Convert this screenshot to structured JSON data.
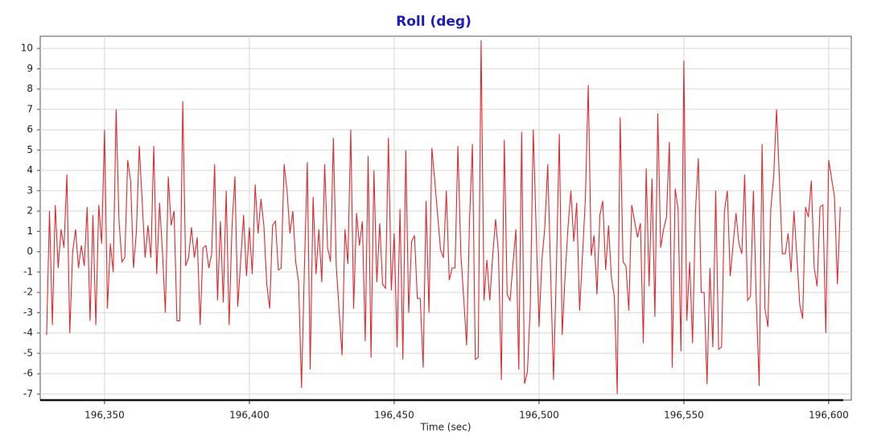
{
  "chart_data": {
    "type": "line",
    "title": "Roll (deg)",
    "x_label": "Time (sec)",
    "color": "#e0282e",
    "grid": true,
    "xlim": [
      196327.8,
      196607.8
    ],
    "xticks": [
      {
        "value": 196350,
        "label": "196,350"
      },
      {
        "value": 196400,
        "label": "196,400"
      },
      {
        "value": 196450,
        "label": "196,450"
      },
      {
        "value": 196500,
        "label": "196,500"
      },
      {
        "value": 196550,
        "label": "196,550"
      },
      {
        "value": 196600,
        "label": "196,600"
      }
    ],
    "ylim": [
      -7.3,
      10.6
    ],
    "yticks": [
      -7,
      -6,
      -5,
      -4,
      -3,
      -2,
      -1,
      0,
      1,
      2,
      3,
      4,
      5,
      6,
      7,
      8,
      9,
      10
    ],
    "x": [
      196330,
      196331,
      196332,
      196333,
      196334,
      196335,
      196336,
      196337,
      196338,
      196339,
      196340,
      196341,
      196342,
      196343,
      196344,
      196345,
      196346,
      196347,
      196348,
      196349,
      196350,
      196351,
      196352,
      196353,
      196354,
      196355,
      196356,
      196357,
      196358,
      196359,
      196360,
      196361,
      196362,
      196364,
      196365,
      196366,
      196367,
      196368,
      196369,
      196370,
      196371,
      196372,
      196373,
      196374,
      196375,
      196376,
      196377,
      196378,
      196379,
      196380,
      196381,
      196382,
      196383,
      196384,
      196385,
      196386,
      196387,
      196388,
      196389,
      196390,
      196391,
      196392,
      196393,
      196394,
      196395,
      196396,
      196398,
      196399,
      196400,
      196401,
      196402,
      196403,
      196404,
      196405,
      196406,
      196407,
      196408,
      196409,
      196410,
      196411,
      196412,
      196413,
      196414,
      196415,
      196416,
      196417,
      196418,
      196419,
      196420,
      196421,
      196422,
      196423,
      196424,
      196425,
      196426,
      196427,
      196428,
      196429,
      196430,
      196432,
      196433,
      196434,
      196435,
      196436,
      196437,
      196438,
      196439,
      196440,
      196441,
      196442,
      196443,
      196444,
      196445,
      196446,
      196447,
      196448,
      196449,
      196450,
      196451,
      196452,
      196453,
      196454,
      196455,
      196456,
      196457,
      196458,
      196459,
      196460,
      196461,
      196462,
      196463,
      196464,
      196466,
      196467,
      196468,
      196469,
      196470,
      196471,
      196472,
      196473,
      196474,
      196475,
      196476,
      196477,
      196478,
      196479,
      196480,
      196481,
      196482,
      196483,
      196484,
      196485,
      196486,
      196487,
      196488,
      196489,
      196490,
      196491,
      196492,
      196493,
      196494,
      196495,
      196496,
      196497,
      196498,
      196500,
      196501,
      196502,
      196503,
      196504,
      196505,
      196506,
      196507,
      196508,
      196509,
      196510,
      196511,
      196512,
      196513,
      196514,
      196515,
      196516,
      196517,
      196518,
      196519,
      196520,
      196521,
      196522,
      196523,
      196524,
      196525,
      196526,
      196527,
      196528,
      196529,
      196530,
      196531,
      196532,
      196534,
      196535,
      196536,
      196537,
      196538,
      196539,
      196540,
      196541,
      196542,
      196543,
      196544,
      196545,
      196546,
      196547,
      196548,
      196549,
      196550,
      196551,
      196552,
      196553,
      196554,
      196555,
      196556,
      196557,
      196558,
      196559,
      196560,
      196561,
      196562,
      196563,
      196564,
      196565,
      196566,
      196568,
      196569,
      196570,
      196571,
      196572,
      196573,
      196574,
      196575,
      196576,
      196577,
      196578,
      196579,
      196580,
      196581,
      196582,
      196583,
      196584,
      196585,
      196586,
      196587,
      196588,
      196589,
      196590,
      196591,
      196592,
      196593,
      196594,
      196595,
      196596,
      196597,
      196598,
      196599,
      196600,
      196602,
      196603,
      196604
    ],
    "values": [
      -4.1,
      2.0,
      -3.6,
      2.3,
      -0.8,
      1.1,
      0.2,
      3.8,
      -4.0,
      0.0,
      1.1,
      -0.8,
      0.3,
      -0.7,
      2.2,
      -3.4,
      1.8,
      -3.6,
      2.3,
      0.4,
      6.0,
      -2.8,
      0.4,
      -1.0,
      7.0,
      1.5,
      -0.5,
      -0.3,
      4.5,
      3.5,
      -0.8,
      1.0,
      5.2,
      -0.3,
      1.3,
      -0.3,
      5.2,
      -1.1,
      2.4,
      0,
      -3.0,
      3.7,
      1.3,
      2.0,
      -3.4,
      -3.4,
      7.4,
      -0.7,
      -0.3,
      1.2,
      -0.3,
      0.7,
      -3.6,
      0.2,
      0.3,
      -0.8,
      -0.1,
      4.3,
      -2.4,
      1.5,
      -2.5,
      3.0,
      -3.6,
      1.2,
      3.7,
      -2.7,
      1.8,
      -1.2,
      1.2,
      -1.1,
      3.3,
      0.9,
      2.6,
      1.3,
      -1.6,
      -2.8,
      1.3,
      1.5,
      -0.9,
      -0.8,
      4.3,
      3.0,
      0.9,
      2.0,
      -0.5,
      -1.5,
      -6.7,
      -0.8,
      4.4,
      -5.8,
      2.7,
      -1.1,
      1.1,
      -1.5,
      4.3,
      0.2,
      -0.5,
      5.6,
      -0.7,
      -5.1,
      1.1,
      -0.6,
      6.0,
      -2.8,
      1.9,
      0.3,
      1.5,
      -4.4,
      4.7,
      -5.2,
      4.0,
      -1.5,
      1.4,
      -1.6,
      -1.8,
      5.6,
      -1.9,
      0.9,
      -4.7,
      2.1,
      -5.3,
      5.0,
      -3.0,
      0.5,
      0.8,
      -2.3,
      -2.3,
      -5.7,
      2.5,
      -3.0,
      5.1,
      3.5,
      0.1,
      -0.3,
      3.0,
      -1.4,
      -0.8,
      -0.8,
      5.2,
      -0.1,
      -2.3,
      -4.6,
      1.5,
      5.3,
      -5.3,
      -5.2,
      10.4,
      -2.4,
      -0.4,
      -2.4,
      -0.2,
      1.6,
      -0.1,
      -6.3,
      5.5,
      -2.1,
      -2.4,
      -0.6,
      1.1,
      -5.8,
      5.9,
      -6.5,
      -5.9,
      -2.6,
      6.0,
      -3.7,
      -0.4,
      1.2,
      4.3,
      -1.0,
      -6.3,
      -0.8,
      5.8,
      -4.1,
      -1.2,
      1.2,
      3.0,
      0.5,
      2.4,
      -2.9,
      -0.2,
      2.6,
      8.2,
      -0.2,
      0.8,
      -2.1,
      1.8,
      2.5,
      -0.9,
      1.3,
      -1.3,
      -2.2,
      -7.0,
      6.6,
      -0.5,
      -0.7,
      -2.9,
      2.3,
      0.7,
      1.4,
      -4.5,
      4.1,
      -1.7,
      3.6,
      -3.2,
      6.8,
      0.2,
      1.1,
      1.7,
      5.4,
      -5.7,
      3.1,
      2.1,
      -4.9,
      9.4,
      -3.4,
      -0.5,
      -4.5,
      2.0,
      4.6,
      -2.0,
      -2.0,
      -6.5,
      -0.8,
      -4.7,
      3.0,
      -4.8,
      -4.7,
      2.0,
      3.0,
      -1.2,
      1.9,
      0.4,
      -0.1,
      3.8,
      -2.4,
      -2.2,
      3.0,
      -2.4,
      -6.6,
      5.3,
      -2.8,
      -3.7,
      2.1,
      3.7,
      7.0,
      3.5,
      -0.1,
      -0.1,
      0.9,
      -1.0,
      2.0,
      -0.2,
      -2.6,
      -3.3,
      2.2,
      1.7,
      3.5,
      -0.8,
      -1.7,
      2.2,
      2.3,
      -4.0,
      4.5,
      2.7,
      -1.6,
      2.2
    ]
  }
}
